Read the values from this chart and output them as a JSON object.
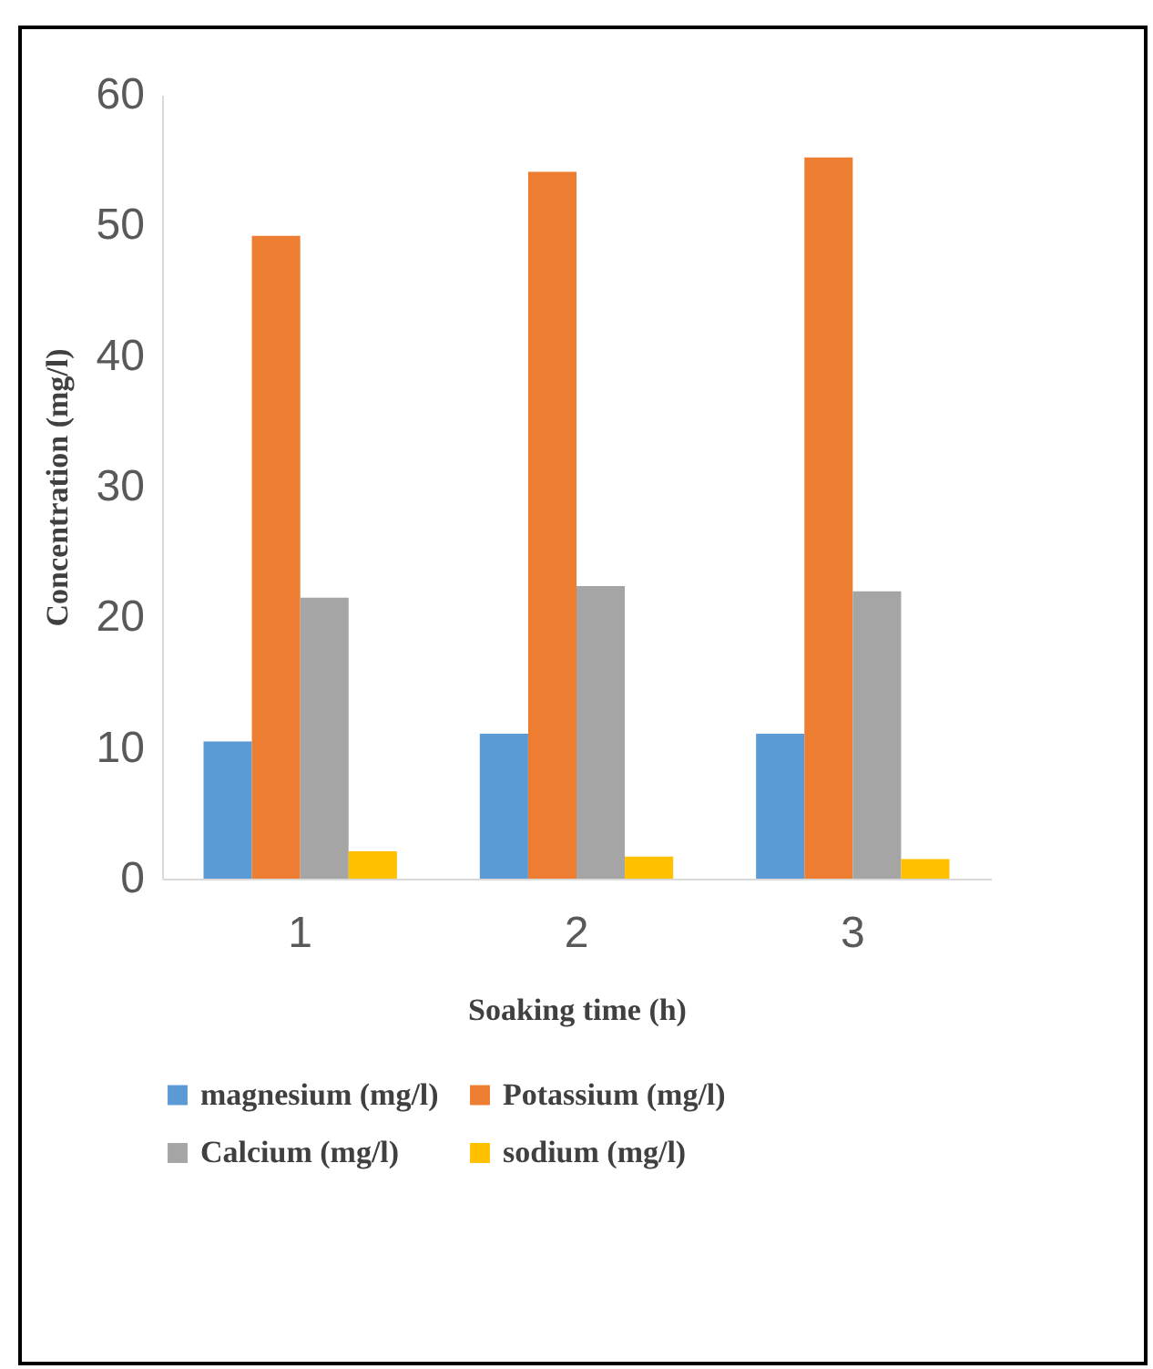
{
  "chart_data": {
    "type": "bar",
    "xlabel": "Soaking time (h)",
    "ylabel": "Concentration (mg/l)",
    "categories": [
      "1",
      "2",
      "3"
    ],
    "series": [
      {
        "name": "magnesium (mg/l)",
        "color": "#5b9bd5",
        "values": [
          10.5,
          11.1,
          11.1
        ]
      },
      {
        "name": "Potassium (mg/l)",
        "color": "#ed7d31",
        "values": [
          49.2,
          54.1,
          55.2
        ]
      },
      {
        "name": "Calcium (mg/l)",
        "color": "#a5a5a5",
        "values": [
          21.5,
          22.4,
          22.0
        ]
      },
      {
        "name": "sodium (mg/l)",
        "color": "#ffc000",
        "values": [
          2.1,
          1.7,
          1.5
        ]
      }
    ],
    "ylim": [
      0,
      60
    ],
    "yticks": [
      0,
      10,
      20,
      30,
      40,
      50,
      60
    ],
    "grid": false,
    "legend": "bottom"
  }
}
